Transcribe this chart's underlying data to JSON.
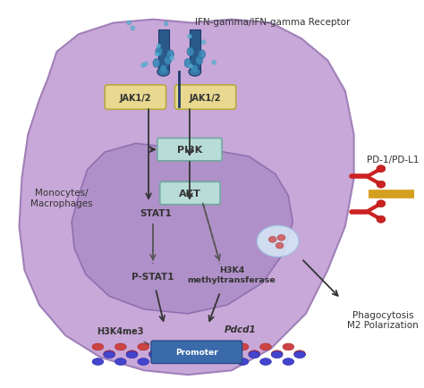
{
  "bg_color": "#ffffff",
  "cell_color": "#c8a8d8",
  "nucleus_color": "#b090c8",
  "jak_box_color": "#e8d890",
  "pi3k_box_color": "#b8dcd8",
  "akt_box_color": "#b8dcd8",
  "receptor_line_color": "#1a3a6a",
  "ifn_dots_color": "#5ab4d4",
  "title_text": "IFN-gamma/IFN-gamma Receptor",
  "pd1_text": "PD-1/PD-L1",
  "phago_text": "Phagocytosis\nM2 Polarization",
  "mono_text": "Monocytes/\nMacrophages",
  "jak_text": "JAK1/2",
  "pi3k_text": "PI3K",
  "akt_text": "AKT",
  "stat1_text": "STAT1",
  "pstat1_text": "P-STAT1",
  "h3k4_text": "H3K4\nmethyltransferase",
  "h3k4me3_text": "H3K4me3",
  "pdcd1_text": "Pdcd1",
  "promoter_text": "Promoter",
  "promoter_color": "#3a6aaa",
  "dna_red": "#cc4444",
  "dna_blue": "#4444cc",
  "arrow_color": "#333333",
  "dash_color": "#555555"
}
